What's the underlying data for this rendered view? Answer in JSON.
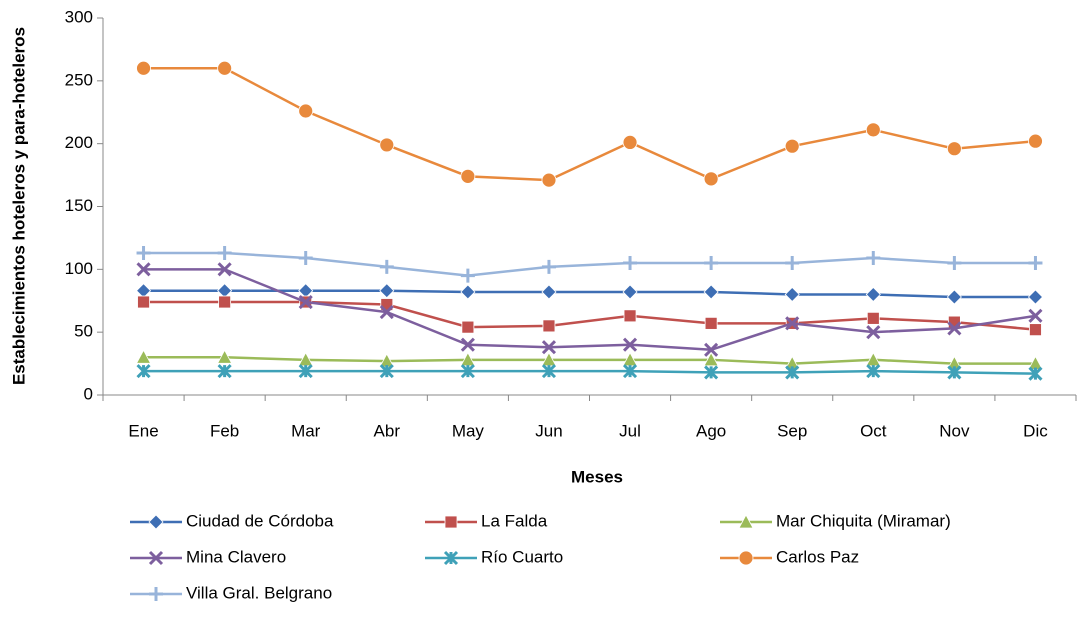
{
  "chart_data": {
    "type": "line",
    "xlabel": "Meses",
    "ylabel": "Establecimientos hoteleros y para-hoteleros",
    "categories": [
      "Ene",
      "Feb",
      "Mar",
      "Abr",
      "May",
      "Jun",
      "Jul",
      "Ago",
      "Sep",
      "Oct",
      "Nov",
      "Dic"
    ],
    "ylim": [
      0,
      300
    ],
    "yticks": [
      0,
      50,
      100,
      150,
      200,
      250,
      300
    ],
    "series": [
      {
        "name": "Ciudad de Córdoba",
        "color": "#3e6eb4",
        "marker": "diamond",
        "values": [
          83,
          83,
          83,
          83,
          82,
          82,
          82,
          82,
          80,
          80,
          78,
          78
        ]
      },
      {
        "name": "La Falda",
        "color": "#c0504d",
        "marker": "square",
        "values": [
          74,
          74,
          74,
          72,
          54,
          55,
          63,
          57,
          57,
          61,
          58,
          52
        ]
      },
      {
        "name": "Mar Chiquita (Miramar)",
        "color": "#9bbb59",
        "marker": "triangle",
        "values": [
          30,
          30,
          28,
          27,
          28,
          28,
          28,
          28,
          25,
          28,
          25,
          25
        ]
      },
      {
        "name": "Mina Clavero",
        "color": "#7d5f9e",
        "marker": "x",
        "values": [
          100,
          100,
          74,
          66,
          40,
          38,
          40,
          36,
          57,
          50,
          53,
          63
        ]
      },
      {
        "name": "Río Cuarto",
        "color": "#3fa1b8",
        "marker": "star",
        "values": [
          19,
          19,
          19,
          19,
          19,
          19,
          19,
          18,
          18,
          19,
          18,
          17
        ]
      },
      {
        "name": "Carlos Paz",
        "color": "#e8893c",
        "marker": "circle",
        "values": [
          260,
          260,
          226,
          199,
          174,
          171,
          201,
          172,
          198,
          211,
          196,
          202
        ]
      },
      {
        "name": "Villa Gral. Belgrano",
        "color": "#98b4da",
        "marker": "plus",
        "values": [
          113,
          113,
          109,
          102,
          95,
          102,
          105,
          105,
          105,
          109,
          105,
          105
        ]
      }
    ]
  }
}
